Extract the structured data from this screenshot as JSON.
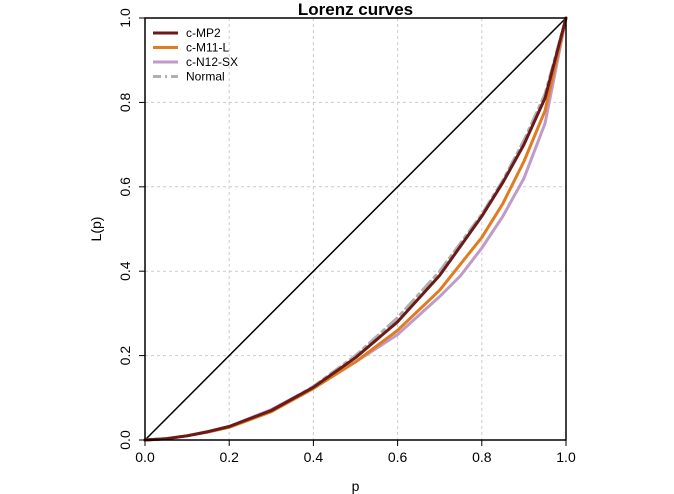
{
  "chart_data": {
    "type": "line",
    "title": "Lorenz curves",
    "xlabel": "p",
    "ylabel": "L(p)",
    "xlim": [
      0,
      1
    ],
    "ylim": [
      0,
      1
    ],
    "xticks": [
      0.0,
      0.2,
      0.4,
      0.6,
      0.8,
      1.0
    ],
    "yticks": [
      0.0,
      0.2,
      0.4,
      0.6,
      0.8,
      1.0
    ],
    "xtick_labels": [
      "0.0",
      "0.2",
      "0.4",
      "0.6",
      "0.8",
      "1.0"
    ],
    "ytick_labels": [
      "0.0",
      "0.2",
      "0.4",
      "0.6",
      "0.8",
      "1.0"
    ],
    "grid": true,
    "legend_position": "top-left",
    "equality_line": {
      "x": [
        0,
        1
      ],
      "y": [
        0,
        1
      ],
      "color": "#000000"
    },
    "series": [
      {
        "name": "c-MP2",
        "color": "#6b1a1a",
        "dash": "solid",
        "x": [
          0,
          0.05,
          0.1,
          0.15,
          0.2,
          0.3,
          0.4,
          0.5,
          0.6,
          0.7,
          0.8,
          0.85,
          0.9,
          0.95,
          1.0
        ],
        "y": [
          0,
          0.003,
          0.01,
          0.02,
          0.032,
          0.07,
          0.125,
          0.195,
          0.28,
          0.39,
          0.53,
          0.61,
          0.7,
          0.81,
          1.0
        ]
      },
      {
        "name": "c-M11-L",
        "color": "#e07b20",
        "dash": "solid",
        "x": [
          0,
          0.05,
          0.1,
          0.15,
          0.2,
          0.3,
          0.4,
          0.5,
          0.6,
          0.7,
          0.8,
          0.85,
          0.9,
          0.95,
          1.0
        ],
        "y": [
          0,
          0.003,
          0.01,
          0.019,
          0.03,
          0.067,
          0.122,
          0.185,
          0.26,
          0.355,
          0.48,
          0.56,
          0.66,
          0.78,
          1.0
        ]
      },
      {
        "name": "c-N12-SX",
        "color": "#c09ac8",
        "dash": "solid",
        "x": [
          0,
          0.05,
          0.1,
          0.15,
          0.2,
          0.3,
          0.4,
          0.5,
          0.6,
          0.7,
          0.75,
          0.8,
          0.85,
          0.9,
          0.95,
          1.0
        ],
        "y": [
          0,
          0.003,
          0.01,
          0.02,
          0.032,
          0.072,
          0.125,
          0.185,
          0.25,
          0.34,
          0.39,
          0.455,
          0.53,
          0.62,
          0.75,
          1.0
        ]
      },
      {
        "name": "Normal",
        "color": "#b0b0b0",
        "dash": "dashdot",
        "x": [
          0,
          0.05,
          0.1,
          0.15,
          0.2,
          0.3,
          0.4,
          0.5,
          0.6,
          0.7,
          0.8,
          0.85,
          0.9,
          0.95,
          1.0
        ],
        "y": [
          0,
          0.003,
          0.01,
          0.02,
          0.032,
          0.07,
          0.127,
          0.2,
          0.29,
          0.4,
          0.535,
          0.615,
          0.71,
          0.82,
          1.0
        ]
      }
    ]
  }
}
